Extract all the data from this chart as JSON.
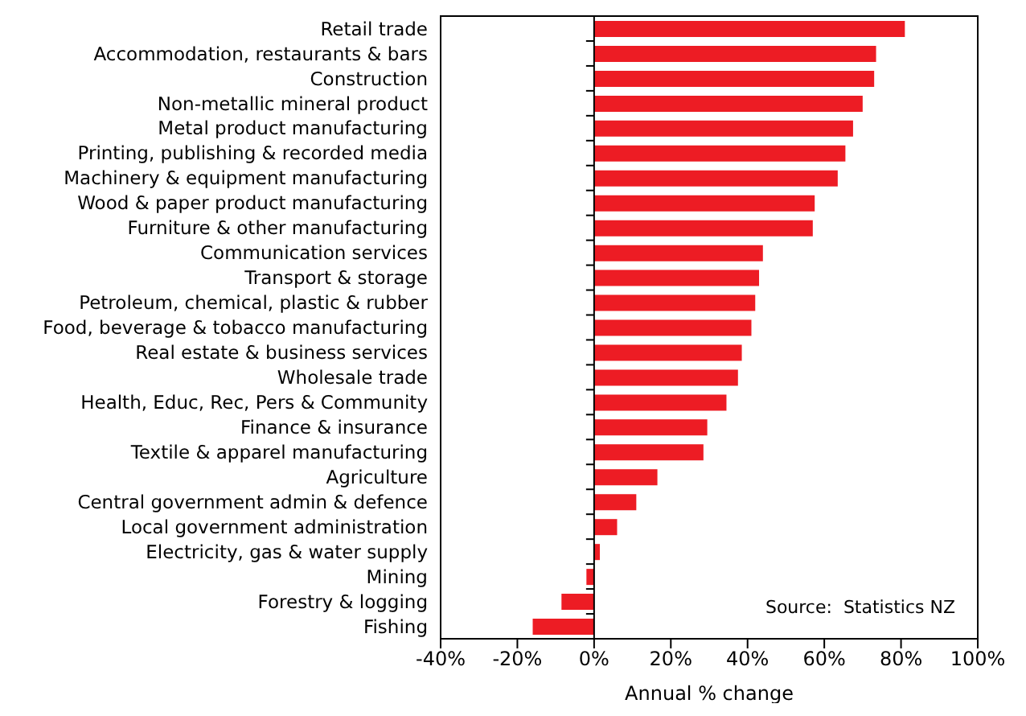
{
  "chart_data": {
    "type": "bar",
    "orientation": "horizontal",
    "xlabel": "Annual % change",
    "categories": [
      "Retail trade",
      "Accommodation, restaurants & bars",
      "Construction",
      "Non-metallic mineral product",
      "Metal product manufacturing",
      "Printing, publishing & recorded media",
      "Machinery & equipment manufacturing",
      "Wood & paper product manufacturing",
      "Furniture & other manufacturing",
      "Communication services",
      "Transport & storage",
      "Petroleum, chemical, plastic & rubber",
      "Food, beverage & tobacco manufacturing",
      "Real estate & business services",
      "Wholesale trade",
      "Health, Educ, Rec, Pers & Community",
      "Finance & insurance",
      "Textile & apparel manufacturing",
      "Agriculture",
      "Central government admin & defence",
      "Local government administration",
      "Electricity, gas & water supply",
      "Mining",
      "Forestry & logging",
      "Fishing"
    ],
    "values": [
      81,
      73.5,
      73,
      70,
      67.5,
      65.5,
      63.5,
      57.5,
      57,
      44,
      43,
      42,
      41,
      38.5,
      37.5,
      34.5,
      29.5,
      28.5,
      16.5,
      11,
      6,
      1.5,
      -2,
      -8.5,
      -16
    ],
    "color": "#ed1c24",
    "xlim": [
      -40,
      100
    ],
    "xticks": [
      {
        "value": -40,
        "label": "-40%"
      },
      {
        "value": -20,
        "label": "-20%"
      },
      {
        "value": 0,
        "label": "0%"
      },
      {
        "value": 20,
        "label": "20%"
      },
      {
        "value": 40,
        "label": "40%"
      },
      {
        "value": 60,
        "label": "60%"
      },
      {
        "value": 80,
        "label": "80%"
      },
      {
        "value": 100,
        "label": "100%"
      }
    ],
    "legend": false,
    "annotations": [
      "Source:  Statistics NZ"
    ]
  }
}
